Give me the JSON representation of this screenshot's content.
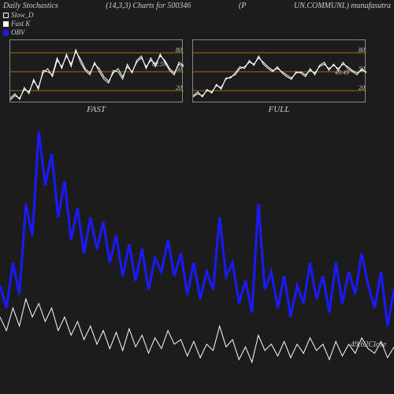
{
  "header": {
    "left": "Daily Stochastics",
    "mid1": "(14,3,3) Charts for 500346",
    "mid2": "(P",
    "right": "UN.COMMUNI.) munafasutra"
  },
  "legend": {
    "items": [
      {
        "label": "Slow_D",
        "color": "#ffffff",
        "filled": false
      },
      {
        "label": "Fast K",
        "color": "#ffffff",
        "filled": true
      },
      {
        "label": "OBV",
        "color": "#1a1aff",
        "filled": true
      }
    ]
  },
  "sub_charts": {
    "fast": {
      "label": "FAST",
      "grid_color": "#cc8800",
      "border_color": "#888888",
      "y_ticks": [
        20,
        50,
        80
      ],
      "value_label": "62.59",
      "line_color": "#ffffff",
      "line_width": 1,
      "series1": [
        5,
        12,
        8,
        22,
        18,
        35,
        25,
        48,
        55,
        42,
        68,
        58,
        75,
        62,
        82,
        70,
        55,
        48,
        62,
        55,
        42,
        35,
        48,
        55,
        42,
        58,
        50,
        65,
        72,
        58,
        68,
        62,
        75,
        68,
        55,
        48,
        62,
        58
      ],
      "series2": [
        8,
        15,
        6,
        25,
        15,
        38,
        22,
        52,
        50,
        45,
        72,
        55,
        78,
        58,
        85,
        65,
        52,
        45,
        65,
        50,
        38,
        32,
        52,
        50,
        38,
        62,
        48,
        68,
        75,
        55,
        72,
        58,
        78,
        65,
        52,
        45,
        65,
        60
      ]
    },
    "full": {
      "label": "FULL",
      "grid_color": "#cc8800",
      "border_color": "#888888",
      "y_ticks": [
        20,
        50,
        80
      ],
      "value_label": "49.49",
      "line_color": "#ffffff",
      "line_width": 1,
      "series1": [
        10,
        15,
        12,
        20,
        18,
        28,
        25,
        38,
        42,
        45,
        55,
        58,
        65,
        62,
        72,
        65,
        58,
        52,
        55,
        50,
        45,
        40,
        48,
        50,
        45,
        52,
        48,
        58,
        62,
        55,
        60,
        55,
        62,
        58,
        52,
        48,
        52,
        50
      ],
      "series2": [
        12,
        18,
        10,
        22,
        16,
        30,
        22,
        40,
        40,
        48,
        58,
        55,
        68,
        60,
        75,
        62,
        55,
        50,
        58,
        48,
        42,
        38,
        50,
        48,
        42,
        55,
        45,
        60,
        65,
        52,
        62,
        52,
        65,
        55,
        50,
        45,
        55,
        48
      ]
    }
  },
  "main_chart": {
    "background_color": "#1c1c1c",
    "close_label": "49.62Close",
    "obv_color": "#1a1aff",
    "obv_width": 3,
    "close_color": "#ffffff",
    "close_width": 1,
    "obv_data": [
      120,
      95,
      145,
      110,
      210,
      175,
      290,
      230,
      265,
      195,
      235,
      170,
      205,
      155,
      195,
      160,
      190,
      145,
      175,
      130,
      165,
      125,
      160,
      115,
      150,
      135,
      170,
      130,
      155,
      110,
      145,
      105,
      135,
      115,
      195,
      130,
      145,
      100,
      125,
      90,
      210,
      115,
      135,
      95,
      130,
      85,
      120,
      100,
      145,
      105,
      130,
      90,
      145,
      100,
      135,
      110,
      155,
      120,
      95,
      135,
      75,
      115
    ],
    "close_data": [
      85,
      70,
      95,
      75,
      105,
      85,
      100,
      80,
      95,
      70,
      85,
      65,
      80,
      60,
      75,
      55,
      70,
      50,
      68,
      48,
      72,
      52,
      65,
      45,
      62,
      50,
      70,
      55,
      60,
      42,
      58,
      40,
      55,
      48,
      75,
      52,
      60,
      38,
      52,
      35,
      65,
      48,
      55,
      42,
      58,
      40,
      55,
      45,
      62,
      48,
      55,
      38,
      58,
      42,
      55,
      45,
      62,
      50,
      45,
      58,
      40,
      52
    ]
  }
}
